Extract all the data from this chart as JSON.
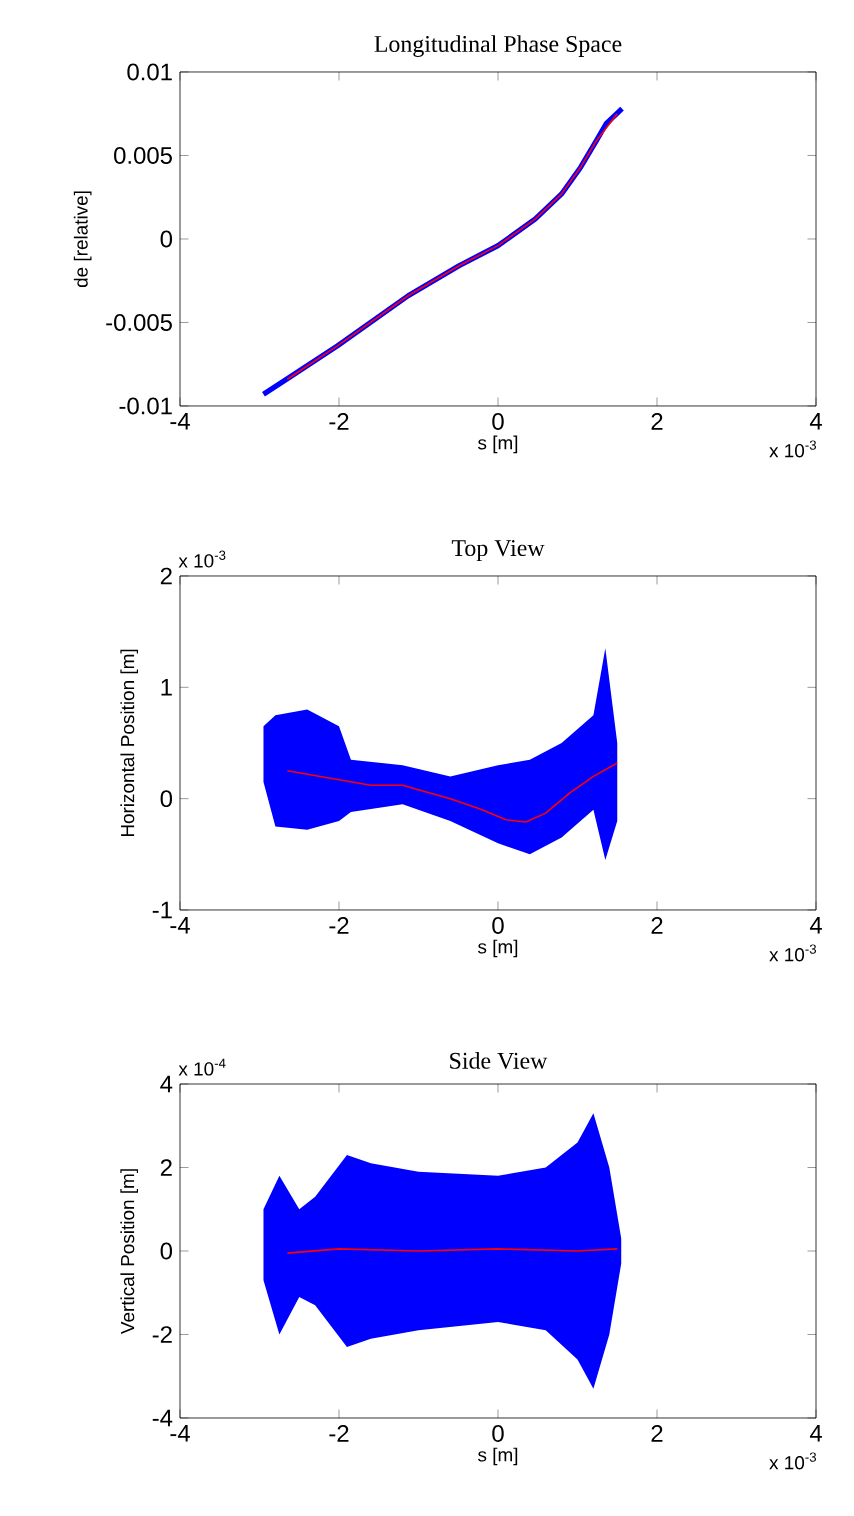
{
  "chart_data": [
    {
      "type": "line",
      "title": "Longitudinal Phase Space",
      "xlabel": "s [m]",
      "ylabel": "de [relative]",
      "xlim": [
        -4,
        4
      ],
      "ylim": [
        -0.01,
        0.01
      ],
      "xticks": [
        -4,
        -2,
        0,
        2,
        4
      ],
      "yticks": [
        -0.01,
        -0.005,
        0,
        0.005,
        0.01
      ],
      "grid": false,
      "annotations": [
        "x 10$^{-3}$"
      ],
      "series": [
        {
          "type": "line",
          "color": "#0000ff",
          "x": [
            -2.95,
            -2.66,
            -2.02,
            -1.13,
            -0.49,
            0,
            0.47,
            0.8,
            1.04,
            1.24,
            1.36,
            1.56
          ],
          "values": [
            -0.0093,
            -0.0084,
            -0.0064,
            -0.0034,
            -0.0016,
            -0.0004,
            0.0012,
            0.0027,
            0.0043,
            0.0059,
            0.0069,
            0.0078
          ]
        },
        {
          "type": "line",
          "color": "#ff0000",
          "x": [
            -2.65,
            -2.02,
            -1.13,
            -0.49,
            0,
            0.47,
            0.8,
            1.04,
            1.24,
            1.5
          ],
          "values": [
            -0.0084,
            -0.0064,
            -0.0034,
            -0.0016,
            -0.0004,
            0.0012,
            0.0027,
            0.0043,
            0.0059,
            0.0075
          ]
        }
      ]
    },
    {
      "type": "line",
      "title": "Top View",
      "xlabel": "s [m]",
      "ylabel": "Horizontal Position [m]",
      "xlim": [
        -4,
        4
      ],
      "ylim": [
        -1,
        2
      ],
      "xticks": [
        -4,
        -2,
        0,
        2,
        4
      ],
      "yticks": [
        -1,
        0,
        1,
        2
      ],
      "grid": false,
      "annotations": [
        "x 10$^{-3}$",
        "x 10$^{-3}$"
      ],
      "series": [
        {
          "type": "line",
          "color": "#0000ff",
          "x": [
            -2.95,
            -2.8,
            -2.4,
            -2.0,
            -1.85,
            -1.2,
            -0.6,
            0,
            0.4,
            0.8,
            1.2,
            1.35,
            1.5
          ],
          "values": [
            null,
            null,
            null,
            null,
            null,
            null,
            null,
            null,
            null,
            null,
            null,
            null,
            null
          ],
          "lower": [
            0.15,
            -0.25,
            -0.28,
            -0.2,
            -0.12,
            -0.05,
            -0.2,
            -0.4,
            -0.5,
            -0.35,
            -0.1,
            -0.55,
            -0.2
          ],
          "upper": [
            0.65,
            0.75,
            0.8,
            0.65,
            0.35,
            0.3,
            0.2,
            0.3,
            0.35,
            0.5,
            0.75,
            1.35,
            0.5
          ]
        },
        {
          "type": "line",
          "color": "#ff0000",
          "x": [
            -2.65,
            -2.0,
            -1.6,
            -1.2,
            -0.6,
            -0.2,
            0.1,
            0.35,
            0.6,
            0.9,
            1.2,
            1.5
          ],
          "values": [
            0.25,
            0.17,
            0.12,
            0.12,
            0.0,
            -0.1,
            -0.19,
            -0.21,
            -0.13,
            0.05,
            0.2,
            0.32
          ]
        }
      ]
    },
    {
      "type": "line",
      "title": "Side View",
      "xlabel": "s [m]",
      "ylabel": "Vertical Position [m]",
      "xlim": [
        -4,
        4
      ],
      "ylim": [
        -4,
        4
      ],
      "xticks": [
        -4,
        -2,
        0,
        2,
        4
      ],
      "yticks": [
        -4,
        -2,
        0,
        2,
        4
      ],
      "grid": false,
      "annotations": [
        "x 10$^{-3}$",
        "x 10$^{-4}$"
      ],
      "series": [
        {
          "type": "line",
          "color": "#0000ff",
          "x": [
            -2.95,
            -2.75,
            -2.5,
            -2.3,
            -1.9,
            -1.6,
            -1.0,
            0,
            0.6,
            1.0,
            1.2,
            1.4,
            1.55
          ],
          "values": [
            null,
            null,
            null,
            null,
            null,
            null,
            null,
            null,
            null,
            null,
            null,
            null,
            null
          ],
          "lower": [
            -0.7,
            -2.0,
            -1.1,
            -1.3,
            -2.3,
            -2.1,
            -1.9,
            -1.7,
            -1.9,
            -2.6,
            -3.3,
            -2.0,
            -0.3
          ],
          "upper": [
            1.0,
            1.8,
            1.0,
            1.3,
            2.3,
            2.1,
            1.9,
            1.8,
            2.0,
            2.6,
            3.3,
            2.0,
            0.3
          ]
        },
        {
          "type": "line",
          "color": "#ff0000",
          "x": [
            -2.65,
            -2.0,
            -1.0,
            0,
            1.0,
            1.5
          ],
          "values": [
            -0.05,
            0.05,
            0.0,
            0.05,
            0.0,
            0.05
          ]
        }
      ]
    }
  ]
}
